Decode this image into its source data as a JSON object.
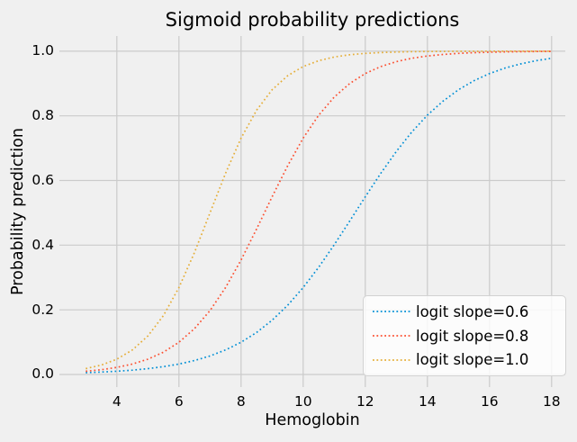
{
  "colors": {
    "figure_bg": "#f0f0f0",
    "grid": "#cbcbcb",
    "text": "#000000",
    "legend_bg": "rgba(255,255,255,0.8)",
    "legend_border": "#d2d2d2"
  },
  "chart_data": {
    "type": "line",
    "title": "Sigmoid probability predictions",
    "xlabel": "Hemoglobin",
    "ylabel": "Probability prediction",
    "line_style": "dotted",
    "grid": true,
    "legend_position": "lower right",
    "axes": {
      "xlim": [
        2.15,
        18.44
      ],
      "ylim": [
        -0.039,
        1.047
      ],
      "x_ticks": [
        4,
        6,
        8,
        10,
        12,
        14,
        16,
        18
      ],
      "x_tick_labels": [
        "4",
        "6",
        "8",
        "10",
        "12",
        "14",
        "16",
        "18"
      ],
      "y_ticks": [
        0.0,
        0.2,
        0.4,
        0.6,
        0.8,
        1.0
      ],
      "y_tick_labels": [
        "0.0",
        "0.2",
        "0.4",
        "0.6",
        "0.8",
        "1.0"
      ]
    },
    "x": [
      3,
      3.5,
      4,
      4.5,
      5,
      5.5,
      6,
      6.5,
      7,
      7.5,
      8,
      8.5,
      9,
      9.5,
      10,
      10.5,
      11,
      11.5,
      12,
      12.5,
      13,
      13.5,
      14,
      14.5,
      15,
      15.5,
      16,
      16.5,
      17,
      17.5,
      18
    ],
    "series": [
      {
        "name": "logit slope=0.6",
        "slope": 0.6,
        "color": "#008fd5",
        "values": [
          0.0055,
          0.0074,
          0.01,
          0.0134,
          0.018,
          0.0241,
          0.0323,
          0.0431,
          0.0573,
          0.0759,
          0.0998,
          0.1301,
          0.168,
          0.2142,
          0.2689,
          0.3318,
          0.4013,
          0.475,
          0.5498,
          0.6225,
          0.69,
          0.7503,
          0.8022,
          0.8455,
          0.8808,
          0.9089,
          0.9309,
          0.9478,
          0.9608,
          0.9707,
          0.9781
        ]
      },
      {
        "name": "logit slope=0.8",
        "slope": 0.8,
        "color": "#fc4f30",
        "values": [
          0.01,
          0.0148,
          0.0219,
          0.0323,
          0.0474,
          0.0691,
          0.0998,
          0.1419,
          0.1978,
          0.2689,
          0.3543,
          0.4502,
          0.5498,
          0.6457,
          0.7311,
          0.8022,
          0.8581,
          0.9002,
          0.9309,
          0.9526,
          0.9677,
          0.9781,
          0.9852,
          0.99,
          0.9933,
          0.9955,
          0.997,
          0.998,
          0.9986,
          0.9991,
          0.9994
        ]
      },
      {
        "name": "logit slope=1.0",
        "slope": 1.0,
        "color": "#e5ae38",
        "values": [
          0.018,
          0.0293,
          0.0474,
          0.0759,
          0.1192,
          0.1824,
          0.2689,
          0.3775,
          0.5,
          0.6225,
          0.7311,
          0.8176,
          0.8808,
          0.9241,
          0.9526,
          0.9707,
          0.982,
          0.989,
          0.9933,
          0.9959,
          0.9975,
          0.9985,
          0.9991,
          0.9994,
          0.9997,
          0.9998,
          0.9999,
          0.9999,
          1.0,
          1.0,
          1.0
        ]
      }
    ]
  }
}
